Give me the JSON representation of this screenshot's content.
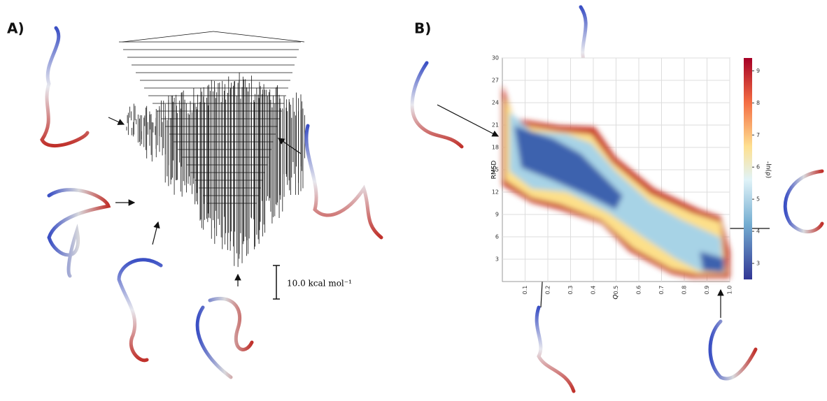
{
  "panel_a": {
    "label": "A)",
    "scale_bar": "10.0 kcal mol⁻¹"
  },
  "panel_b": {
    "label": "B)",
    "x_label": "Q",
    "y_label": "RMSD",
    "colorbar_label": "-ln(ρ)",
    "xlim": [
      0,
      1
    ],
    "ylim": [
      0,
      30
    ],
    "xticks": [
      0.1,
      0.2,
      0.3,
      0.4,
      0.5,
      0.6,
      0.7,
      0.8,
      0.9,
      {
        "value": 1,
        "label": "1.0"
      }
    ],
    "yticks": [
      3,
      6,
      9,
      12,
      15,
      18,
      21,
      24,
      27,
      30
    ],
    "colorbar_lim": [
      2.5,
      9.4
    ],
    "colorbar_ticks": [
      3,
      4,
      5,
      6,
      7,
      8,
      9
    ]
  }
}
